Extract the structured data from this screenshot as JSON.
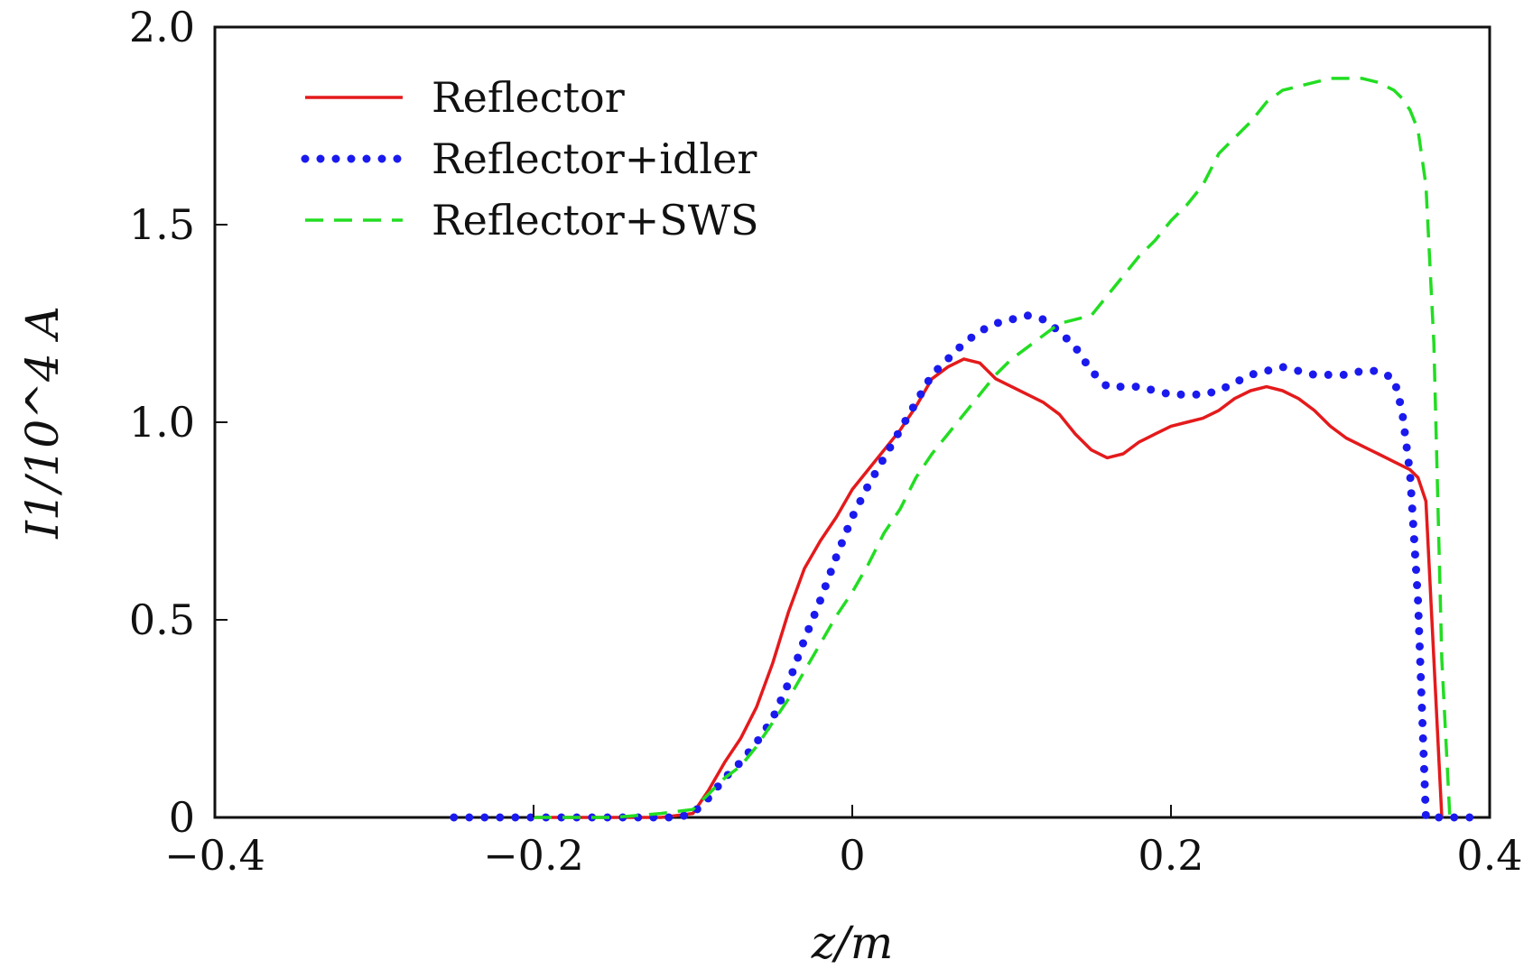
{
  "chart_data": {
    "type": "line",
    "xlabel": "z/m",
    "ylabel": "I1/10^4 A",
    "xlim": [
      -0.4,
      0.4
    ],
    "ylim": [
      0,
      2.0
    ],
    "xticks": [
      -0.4,
      -0.2,
      0,
      0.2,
      0.4
    ],
    "xtick_labels": [
      "−0.4",
      "−0.2",
      "0",
      "0.2",
      "0.4"
    ],
    "yticks": [
      0,
      0.5,
      1.0,
      1.5,
      2.0
    ],
    "ytick_labels": [
      "0",
      "0.5",
      "1.0",
      "1.5",
      "2.0"
    ],
    "grid": false,
    "legend": "top-left",
    "series": [
      {
        "name": "Reflector",
        "style": "solid",
        "color": "#e41a1c",
        "x": [
          -0.2,
          -0.18,
          -0.15,
          -0.12,
          -0.11,
          -0.1,
          -0.09,
          -0.08,
          -0.07,
          -0.06,
          -0.05,
          -0.04,
          -0.03,
          -0.02,
          -0.01,
          0.0,
          0.01,
          0.02,
          0.03,
          0.04,
          0.05,
          0.06,
          0.07,
          0.08,
          0.09,
          0.1,
          0.11,
          0.12,
          0.13,
          0.14,
          0.15,
          0.16,
          0.17,
          0.18,
          0.19,
          0.2,
          0.21,
          0.22,
          0.23,
          0.24,
          0.25,
          0.26,
          0.27,
          0.28,
          0.29,
          0.3,
          0.31,
          0.32,
          0.33,
          0.34,
          0.35,
          0.355,
          0.36,
          0.365,
          0.37
        ],
        "y": [
          0.0,
          0.0,
          0.0,
          0.0,
          0.005,
          0.01,
          0.07,
          0.14,
          0.2,
          0.28,
          0.39,
          0.52,
          0.63,
          0.7,
          0.76,
          0.83,
          0.88,
          0.93,
          0.98,
          1.04,
          1.11,
          1.14,
          1.16,
          1.15,
          1.11,
          1.09,
          1.07,
          1.05,
          1.02,
          0.97,
          0.93,
          0.91,
          0.92,
          0.95,
          0.97,
          0.99,
          1.0,
          1.01,
          1.03,
          1.06,
          1.08,
          1.09,
          1.08,
          1.06,
          1.03,
          0.99,
          0.96,
          0.94,
          0.92,
          0.9,
          0.88,
          0.86,
          0.8,
          0.4,
          0.0
        ]
      },
      {
        "name": "Reflector+idler",
        "style": "dotted",
        "color": "#1a1aee",
        "x": [
          -0.25,
          -0.2,
          -0.15,
          -0.11,
          -0.1,
          -0.09,
          -0.08,
          -0.07,
          -0.06,
          -0.05,
          -0.04,
          -0.03,
          -0.02,
          -0.01,
          0.0,
          0.01,
          0.02,
          0.03,
          0.04,
          0.05,
          0.06,
          0.07,
          0.08,
          0.09,
          0.1,
          0.11,
          0.12,
          0.13,
          0.14,
          0.15,
          0.16,
          0.17,
          0.18,
          0.19,
          0.2,
          0.21,
          0.22,
          0.23,
          0.24,
          0.25,
          0.26,
          0.27,
          0.28,
          0.29,
          0.3,
          0.31,
          0.32,
          0.33,
          0.34,
          0.345,
          0.35,
          0.355,
          0.36,
          0.37,
          0.39
        ],
        "y": [
          0.0,
          0.0,
          0.0,
          0.0,
          0.01,
          0.05,
          0.1,
          0.14,
          0.19,
          0.25,
          0.34,
          0.45,
          0.55,
          0.66,
          0.76,
          0.84,
          0.91,
          0.98,
          1.05,
          1.12,
          1.16,
          1.2,
          1.23,
          1.25,
          1.26,
          1.27,
          1.26,
          1.23,
          1.19,
          1.13,
          1.09,
          1.09,
          1.09,
          1.08,
          1.07,
          1.07,
          1.07,
          1.08,
          1.1,
          1.12,
          1.13,
          1.14,
          1.13,
          1.12,
          1.12,
          1.12,
          1.13,
          1.13,
          1.11,
          1.03,
          0.87,
          0.55,
          0.0,
          0.0,
          0.0
        ]
      },
      {
        "name": "Reflector+SWS",
        "style": "dashed",
        "color": "#22dd22",
        "x": [
          -0.2,
          -0.15,
          -0.12,
          -0.1,
          -0.09,
          -0.08,
          -0.07,
          -0.06,
          -0.05,
          -0.04,
          -0.03,
          -0.02,
          -0.01,
          0.0,
          0.01,
          0.02,
          0.03,
          0.04,
          0.05,
          0.06,
          0.07,
          0.08,
          0.09,
          0.1,
          0.11,
          0.12,
          0.13,
          0.14,
          0.15,
          0.16,
          0.17,
          0.18,
          0.19,
          0.2,
          0.21,
          0.22,
          0.23,
          0.24,
          0.25,
          0.26,
          0.27,
          0.28,
          0.29,
          0.3,
          0.31,
          0.32,
          0.33,
          0.34,
          0.345,
          0.35,
          0.355,
          0.36,
          0.365,
          0.37,
          0.375
        ],
        "y": [
          0.0,
          0.0,
          0.01,
          0.02,
          0.06,
          0.1,
          0.13,
          0.18,
          0.24,
          0.3,
          0.37,
          0.44,
          0.51,
          0.57,
          0.64,
          0.72,
          0.78,
          0.86,
          0.92,
          0.97,
          1.02,
          1.07,
          1.12,
          1.16,
          1.19,
          1.22,
          1.25,
          1.26,
          1.27,
          1.32,
          1.37,
          1.42,
          1.46,
          1.51,
          1.55,
          1.6,
          1.68,
          1.72,
          1.76,
          1.81,
          1.84,
          1.85,
          1.86,
          1.87,
          1.87,
          1.87,
          1.86,
          1.84,
          1.82,
          1.79,
          1.74,
          1.6,
          1.2,
          0.4,
          0.0
        ]
      }
    ]
  }
}
